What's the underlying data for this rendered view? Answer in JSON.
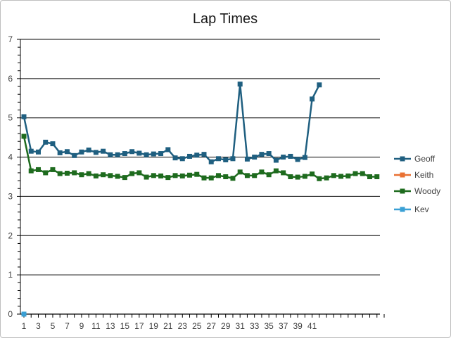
{
  "chart_data": {
    "type": "line",
    "title": "Lap Times",
    "xlabel": "",
    "ylabel": "",
    "ylim": [
      0,
      7
    ],
    "yticks": [
      0,
      1,
      2,
      3,
      4,
      5,
      6,
      7
    ],
    "x_count": 51,
    "x_tick_labels": [
      "1",
      "3",
      "5",
      "7",
      "9",
      "11",
      "13",
      "15",
      "17",
      "19",
      "21",
      "23",
      "25",
      "27",
      "29",
      "31",
      "33",
      "35",
      "37",
      "39",
      "41"
    ],
    "grid": "horizontal",
    "legend_position": "right",
    "series": [
      {
        "name": "Geoff",
        "color": "#1f5f80",
        "values": [
          5.03,
          4.15,
          4.13,
          4.38,
          4.34,
          4.11,
          4.14,
          4.04,
          4.13,
          4.18,
          4.12,
          4.15,
          4.06,
          4.06,
          4.09,
          4.14,
          4.1,
          4.06,
          4.08,
          4.09,
          4.19,
          3.98,
          3.96,
          4.02,
          4.05,
          4.07,
          3.88,
          3.96,
          3.93,
          3.96,
          5.86,
          3.95,
          4.0,
          4.07,
          4.09,
          3.92,
          4.0,
          4.02,
          3.94,
          3.99,
          5.48,
          5.84
        ]
      },
      {
        "name": "Keith",
        "color": "#e97132",
        "values": []
      },
      {
        "name": "Woody",
        "color": "#1e6b1e",
        "values": [
          4.53,
          3.65,
          3.68,
          3.6,
          3.68,
          3.58,
          3.59,
          3.6,
          3.55,
          3.58,
          3.52,
          3.55,
          3.53,
          3.51,
          3.48,
          3.58,
          3.6,
          3.49,
          3.53,
          3.52,
          3.48,
          3.53,
          3.52,
          3.54,
          3.56,
          3.47,
          3.47,
          3.53,
          3.5,
          3.46,
          3.62,
          3.53,
          3.53,
          3.62,
          3.55,
          3.65,
          3.6,
          3.5,
          3.49,
          3.51,
          3.57,
          3.45,
          3.47,
          3.53,
          3.51,
          3.52,
          3.58,
          3.58,
          3.5,
          3.5
        ]
      },
      {
        "name": "Kev",
        "color": "#3aa0d5",
        "values": [
          0
        ]
      }
    ]
  }
}
